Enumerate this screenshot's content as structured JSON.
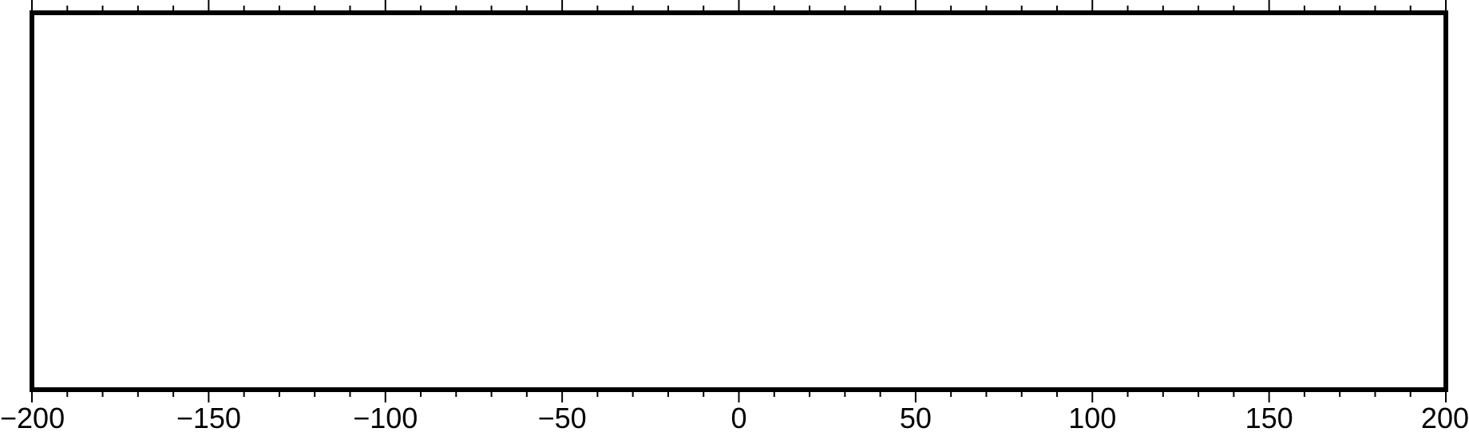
{
  "chart_data": {
    "type": "scatter",
    "title": "",
    "xlabel": "",
    "ylabel": "",
    "xlim": [
      -200,
      200
    ],
    "major_tick_step": 50,
    "minor_tick_step": 10,
    "x_tick_labels": [
      {
        "value": -200,
        "label": "−200"
      },
      {
        "value": -150,
        "label": "−150"
      },
      {
        "value": -100,
        "label": "−100"
      },
      {
        "value": -50,
        "label": "−50"
      },
      {
        "value": 0,
        "label": "0"
      },
      {
        "value": 50,
        "label": "50"
      },
      {
        "value": 100,
        "label": "100"
      },
      {
        "value": 150,
        "label": "150"
      },
      {
        "value": 200,
        "label": "200"
      }
    ],
    "grid": false,
    "series": [],
    "frame_color": "#000000",
    "background_color": "#ffffff"
  }
}
